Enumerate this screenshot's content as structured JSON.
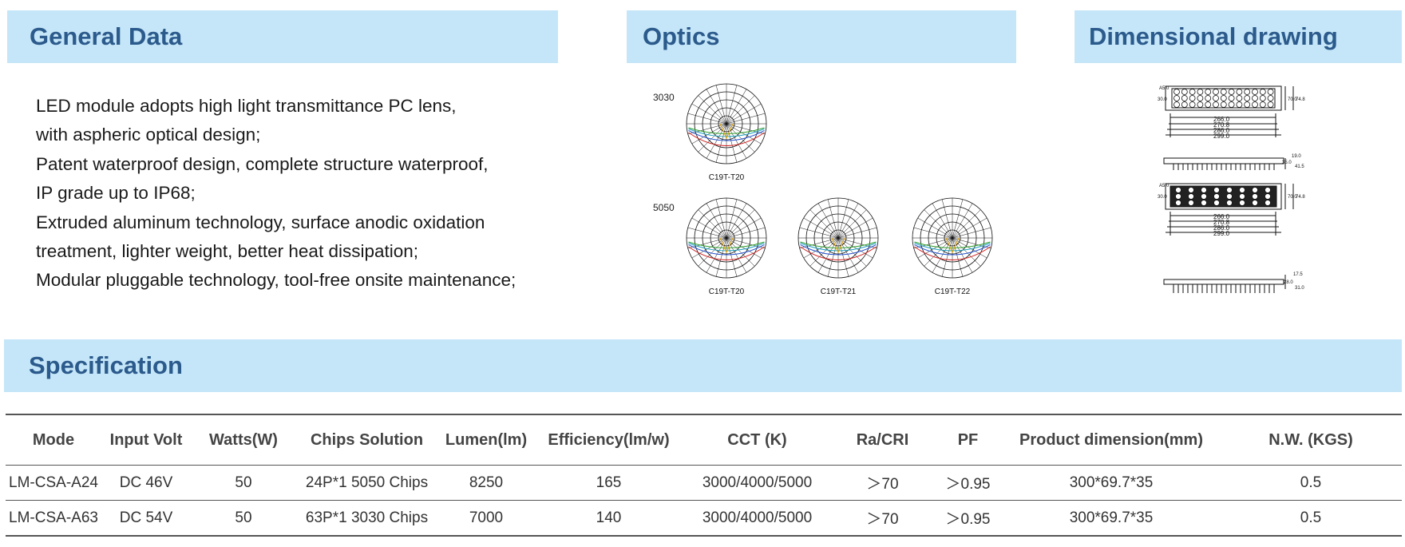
{
  "sections": {
    "general": "General Data",
    "optics": "Optics",
    "dimensional": "Dimensional drawing",
    "specification": "Specification"
  },
  "features": [
    "LED module adopts high light transmittance PC lens,",
    "with aspheric optical design;",
    "Patent waterproof design, complete structure waterproof,",
    "IP grade up to IP68;",
    "Extruded aluminum technology, surface anodic oxidation",
    "treatment, lighter weight, better heat dissipation;",
    "Modular pluggable technology, tool-free onsite maintenance;"
  ],
  "optics": {
    "chip_3030": "3030",
    "chip_5050": "5050",
    "caption_1": "C19T-T20",
    "caption_2": "C19T-T20",
    "caption_3": "C19T-T21",
    "caption_4": "C19T-T22"
  },
  "dimensions": {
    "top_len_1": "266.0",
    "top_len_2": "270.8",
    "top_len_3": "286.0",
    "top_len_4": "299.0",
    "top_w": "70.0",
    "top_w2": "74.8",
    "top_side": "30.0",
    "top_a": "A5.0",
    "top_h1": "19.0",
    "top_h2": "35.0",
    "top_h3": "41.5",
    "bot_len_1": "266.0",
    "bot_len_2": "270.8",
    "bot_len_3": "286.0",
    "bot_len_4": "299.0",
    "bot_w": "70.0",
    "bot_w2": "74.8",
    "bot_side": "30.0",
    "bot_a": "A5.0",
    "bot_h1": "17.5",
    "bot_h2": "28.0",
    "bot_h3": "31.0"
  },
  "table": {
    "headers": [
      "Mode",
      "Input Volt",
      "Watts(W)",
      "Chips Solution",
      "Lumen(lm)",
      "Efficiency(lm/w)",
      "CCT (K)",
      "Ra/CRI",
      "PF",
      "Product dimension(mm)",
      "N.W. (KGS)"
    ],
    "rows": [
      [
        "LM-CSA-A24",
        "DC 46V",
        "50",
        "24P*1  5050 Chips",
        "8250",
        "165",
        "3000/4000/5000",
        "＞70",
        "＞0.95",
        "300*69.7*35",
        "0.5"
      ],
      [
        "LM-CSA-A63",
        "DC 54V",
        "50",
        "63P*1  3030 Chips",
        "7000",
        "140",
        "3000/4000/5000",
        "＞70",
        "＞0.95",
        "300*69.7*35",
        "0.5"
      ]
    ]
  }
}
